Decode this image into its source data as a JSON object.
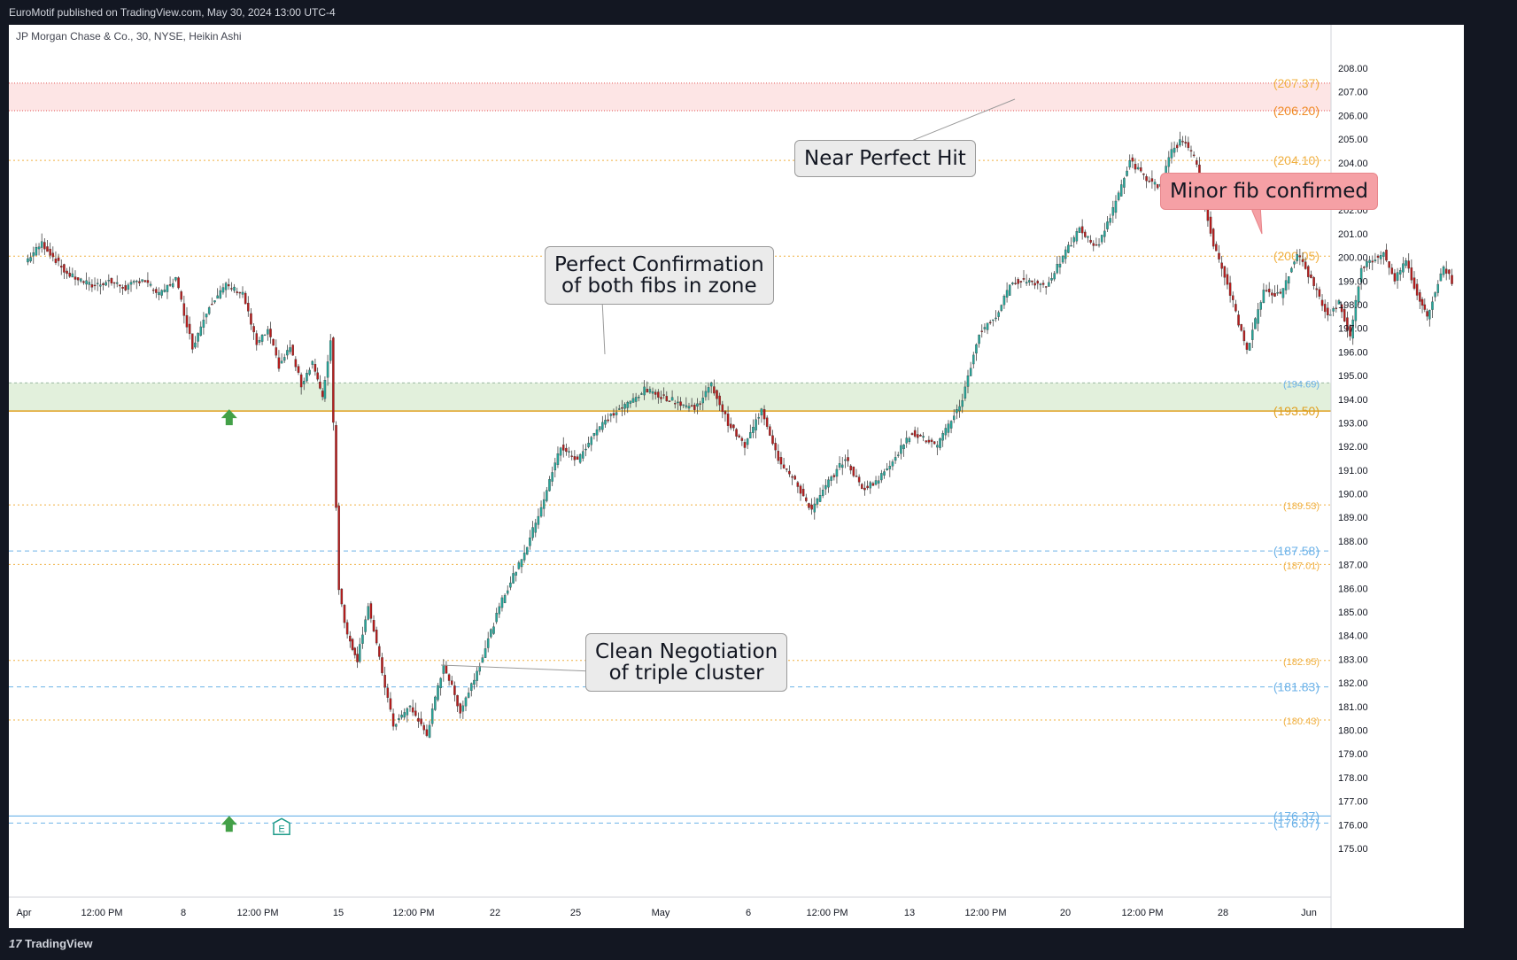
{
  "header": {
    "published": "EuroMotif published on TradingView.com, May 30, 2024 13:00 UTC-4"
  },
  "legend": {
    "symbol": "JP Morgan Chase & Co., 30, NYSE, Heikin Ashi"
  },
  "footer": {
    "brand": "TradingView"
  },
  "colors": {
    "up": "#26a69a",
    "down": "#b71c1c",
    "resistance_zone": "#fde5e5",
    "support_zone": "#e2f0dc",
    "orange_level": "#f5b226",
    "blue_level": "#6cb2e8"
  },
  "callouts": [
    {
      "text": "Near Perfect Hit",
      "style": "grey"
    },
    {
      "text": "Perfect Confirmation\nof both fibs in zone",
      "style": "grey"
    },
    {
      "text": "Clean Negotiation\nof triple cluster",
      "style": "grey"
    },
    {
      "text": "Minor fib confirmed",
      "style": "red"
    }
  ],
  "markers": [
    {
      "type": "arrow-up",
      "color": "#43a047",
      "date": "Apr 9",
      "price": 193.5
    },
    {
      "type": "arrow-up",
      "color": "#43a047",
      "date": "Apr 9",
      "price": 176.3
    },
    {
      "type": "earnings",
      "label": "E",
      "date": "Apr 12",
      "price": 176.0
    }
  ],
  "chart_data": {
    "type": "candlestick",
    "style": "Heikin Ashi",
    "interval": "30",
    "exchange": "NYSE",
    "x_ticks": [
      "Apr",
      "12:00 PM",
      "8",
      "12:00 PM",
      "15",
      "12:00 PM",
      "22",
      "25",
      "May",
      "6",
      "12:00 PM",
      "13",
      "12:00 PM",
      "20",
      "12:00 PM",
      "28",
      "Jun"
    ],
    "ylim": [
      175.0,
      208.5
    ],
    "y_ticks": [
      "208.00",
      "207.00",
      "206.00",
      "205.00",
      "204.00",
      "203.00",
      "202.00",
      "201.00",
      "200.00",
      "199.00",
      "198.00",
      "197.00",
      "196.00",
      "195.00",
      "194.00",
      "193.00",
      "192.00",
      "191.00",
      "190.00",
      "189.00",
      "188.00",
      "187.00",
      "186.00",
      "185.00",
      "184.00",
      "183.00",
      "182.00",
      "181.00",
      "180.00",
      "179.00",
      "178.00",
      "177.00",
      "176.00",
      "175.00"
    ],
    "zones": [
      {
        "name": "resistance",
        "from": 206.2,
        "to": 207.37,
        "color": "#fde5e5"
      },
      {
        "name": "support",
        "from": 193.5,
        "to": 194.69,
        "color": "#e2f0dc"
      }
    ],
    "levels": [
      {
        "value": 207.37,
        "label": "(207.37)",
        "color": "#f0b041",
        "style": "dotted-red"
      },
      {
        "value": 206.2,
        "label": "(206.20)",
        "color": "#f08a24",
        "style": "dotted-red"
      },
      {
        "value": 204.1,
        "label": "(204.10)",
        "color": "#f0b041",
        "style": "dotted"
      },
      {
        "value": 200.05,
        "label": "(200.05)",
        "color": "#f0b041",
        "style": "dotted"
      },
      {
        "value": 194.69,
        "label": "(194.69)",
        "color": "#6cb2e8",
        "style": "dotted-grey"
      },
      {
        "value": 193.5,
        "label": "(193.50)",
        "color": "#e0a020",
        "style": "solid"
      },
      {
        "value": 189.53,
        "label": "(189.53)",
        "color": "#f0b041",
        "style": "dotted"
      },
      {
        "value": 187.58,
        "label": "(187.58)",
        "color": "#6cb2e8",
        "style": "dashed"
      },
      {
        "value": 187.01,
        "label": "(187.01)",
        "color": "#f0b041",
        "style": "dotted"
      },
      {
        "value": 182.95,
        "label": "(182.95)",
        "color": "#f0b041",
        "style": "dotted"
      },
      {
        "value": 181.83,
        "label": "(181.83)",
        "color": "#6cb2e8",
        "style": "dashed"
      },
      {
        "value": 180.43,
        "label": "(180.43)",
        "color": "#f0b041",
        "style": "dotted"
      },
      {
        "value": 176.37,
        "label": "(176.37)",
        "color": "#6cb2e8",
        "style": "solid"
      },
      {
        "value": 176.07,
        "label": "(176.07)",
        "color": "#6cb2e8",
        "style": "dashed"
      }
    ],
    "price_path": [
      [
        "Apr 1",
        199.8
      ],
      [
        "Apr 1",
        200.6
      ],
      [
        "Apr 2",
        199.3
      ],
      [
        "Apr 3",
        198.8
      ],
      [
        "Apr 3",
        199.0
      ],
      [
        "Apr 4",
        198.7
      ],
      [
        "Apr 4",
        199.1
      ],
      [
        "Apr 5",
        198.4
      ],
      [
        "Apr 5",
        199.1
      ],
      [
        "Apr 8",
        196.2
      ],
      [
        "Apr 8",
        198.0
      ],
      [
        "Apr 9",
        198.8
      ],
      [
        "Apr 9",
        198.5
      ],
      [
        "Apr 10",
        196.3
      ],
      [
        "Apr 10",
        196.9
      ],
      [
        "Apr 10",
        195.4
      ],
      [
        "Apr 11",
        196.2
      ],
      [
        "Apr 11",
        194.6
      ],
      [
        "Apr 11",
        195.6
      ],
      [
        "Apr 12",
        194.0
      ],
      [
        "Apr 12",
        196.5
      ],
      [
        "Apr 12",
        186.0
      ],
      [
        "Apr 12",
        184.0
      ],
      [
        "Apr 15",
        183.0
      ],
      [
        "Apr 15",
        185.3
      ],
      [
        "Apr 15",
        183.0
      ],
      [
        "Apr 16",
        180.2
      ],
      [
        "Apr 16",
        181.0
      ],
      [
        "Apr 17",
        179.8
      ],
      [
        "Apr 17",
        182.8
      ],
      [
        "Apr 18",
        180.8
      ],
      [
        "Apr 18",
        182.5
      ],
      [
        "Apr 19",
        185.5
      ],
      [
        "Apr 22",
        187.8
      ],
      [
        "Apr 22",
        189.8
      ],
      [
        "Apr 23",
        192.0
      ],
      [
        "Apr 23",
        191.4
      ],
      [
        "Apr 24",
        192.6
      ],
      [
        "Apr 24",
        193.3
      ],
      [
        "Apr 25",
        193.8
      ],
      [
        "Apr 25",
        194.4
      ],
      [
        "Apr 26",
        194.0
      ],
      [
        "Apr 29",
        193.6
      ],
      [
        "Apr 29",
        194.6
      ],
      [
        "Apr 30",
        193.0
      ],
      [
        "Apr 30",
        192.0
      ],
      [
        "May 1",
        193.6
      ],
      [
        "May 1",
        191.5
      ],
      [
        "May 2",
        190.5
      ],
      [
        "May 2",
        189.3
      ],
      [
        "May 3",
        190.5
      ],
      [
        "May 3",
        191.5
      ],
      [
        "May 6",
        190.2
      ],
      [
        "May 6",
        190.6
      ],
      [
        "May 7",
        191.6
      ],
      [
        "May 7",
        192.6
      ],
      [
        "May 8",
        192.0
      ],
      [
        "May 9",
        194.0
      ],
      [
        "May 9",
        196.8
      ],
      [
        "May 10",
        197.5
      ],
      [
        "May 10",
        199.0
      ],
      [
        "May 13",
        199.0
      ],
      [
        "May 13",
        198.8
      ],
      [
        "May 14",
        200.0
      ],
      [
        "May 14",
        201.2
      ],
      [
        "May 15",
        200.4
      ],
      [
        "May 15",
        202.0
      ],
      [
        "May 16",
        204.1
      ],
      [
        "May 16",
        203.3
      ],
      [
        "May 17",
        203.0
      ],
      [
        "May 17",
        204.5
      ],
      [
        "May 17",
        205.0
      ],
      [
        "May 20",
        204.0
      ],
      [
        "May 20",
        200.5
      ],
      [
        "May 21",
        198.5
      ],
      [
        "May 21",
        196.0
      ],
      [
        "May 22",
        198.6
      ],
      [
        "May 22",
        198.4
      ],
      [
        "May 23",
        200.2
      ],
      [
        "May 23",
        198.8
      ],
      [
        "May 24",
        197.5
      ],
      [
        "May 24",
        198.1
      ],
      [
        "May 24",
        196.6
      ],
      [
        "May 28",
        199.6
      ],
      [
        "May 28",
        199.9
      ],
      [
        "May 28",
        200.2
      ],
      [
        "May 29",
        199.1
      ],
      [
        "May 29",
        199.8
      ],
      [
        "May 29",
        198.4
      ],
      [
        "May 30",
        197.5
      ],
      [
        "May 30",
        198.6
      ],
      [
        "May 30",
        199.6
      ],
      [
        "May 30",
        199.0
      ]
    ],
    "annotations": [
      "Near Perfect Hit",
      "Perfect Confirmation of both fibs in zone",
      "Clean Negotiation of triple cluster",
      "Minor fib confirmed"
    ],
    "grid": false
  }
}
